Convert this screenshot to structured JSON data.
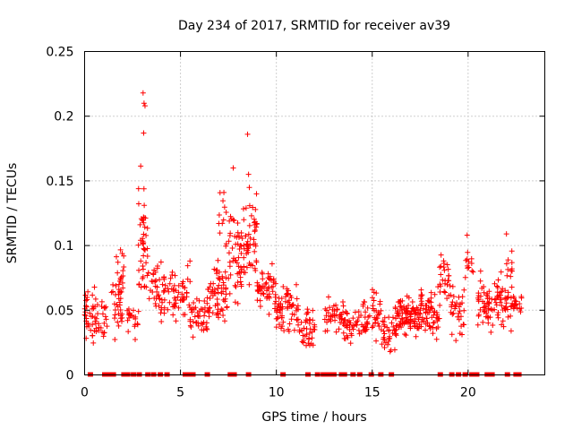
{
  "chart_data": {
    "type": "scatter",
    "title": "Day 234 of 2017, SRMTID for receiver av39",
    "xlabel": "GPS time / hours",
    "ylabel": "SRMTID / TECUs",
    "xlim": [
      0,
      24
    ],
    "ylim": [
      0,
      0.25
    ],
    "xticks": [
      0,
      5,
      10,
      15,
      20
    ],
    "yticks": [
      0,
      0.05,
      0.1,
      0.15,
      0.2,
      0.25
    ],
    "ytick_labels": [
      "0",
      "0.05",
      "0.1",
      "0.15",
      "0.2",
      "0.25"
    ],
    "grid": true,
    "marker": "+",
    "series_color": "#ff0000",
    "peaks": [
      {
        "x": 3.05,
        "y": 0.218
      },
      {
        "x": 3.1,
        "y": 0.21
      },
      {
        "x": 3.15,
        "y": 0.208
      },
      {
        "x": 3.08,
        "y": 0.187
      },
      {
        "x": 7.75,
        "y": 0.16
      },
      {
        "x": 8.5,
        "y": 0.186
      },
      {
        "x": 8.55,
        "y": 0.155
      },
      {
        "x": 22.0,
        "y": 0.109
      },
      {
        "x": 19.95,
        "y": 0.108
      }
    ],
    "segments": [
      {
        "x0": 0.0,
        "x1": 0.5,
        "ymean": 0.05,
        "spread": 0.025,
        "count": 30
      },
      {
        "x0": 0.5,
        "x1": 1.2,
        "ymean": 0.042,
        "spread": 0.02,
        "count": 30
      },
      {
        "x0": 1.4,
        "x1": 2.0,
        "ymean": 0.05,
        "spread": 0.025,
        "count": 28
      },
      {
        "x0": 1.6,
        "x1": 2.1,
        "ymean": 0.08,
        "spread": 0.018,
        "count": 18
      },
      {
        "x0": 2.2,
        "x1": 2.8,
        "ymean": 0.045,
        "spread": 0.012,
        "count": 20
      },
      {
        "x0": 2.8,
        "x1": 3.3,
        "ymean": 0.1,
        "spread": 0.045,
        "count": 45
      },
      {
        "x0": 3.3,
        "x1": 4.2,
        "ymean": 0.068,
        "spread": 0.02,
        "count": 45
      },
      {
        "x0": 4.2,
        "x1": 5.5,
        "ymean": 0.063,
        "spread": 0.022,
        "count": 55
      },
      {
        "x0": 5.5,
        "x1": 6.4,
        "ymean": 0.045,
        "spread": 0.015,
        "count": 40
      },
      {
        "x0": 6.4,
        "x1": 7.5,
        "ymean": 0.062,
        "spread": 0.025,
        "count": 65
      },
      {
        "x0": 7.0,
        "x1": 7.4,
        "ymean": 0.12,
        "spread": 0.025,
        "count": 12
      },
      {
        "x0": 7.5,
        "x1": 8.2,
        "ymean": 0.09,
        "spread": 0.035,
        "count": 50
      },
      {
        "x0": 8.2,
        "x1": 9.0,
        "ymean": 0.1,
        "spread": 0.04,
        "count": 55
      },
      {
        "x0": 9.0,
        "x1": 10.0,
        "ymean": 0.065,
        "spread": 0.02,
        "count": 55
      },
      {
        "x0": 10.0,
        "x1": 11.2,
        "ymean": 0.05,
        "spread": 0.02,
        "count": 65
      },
      {
        "x0": 11.2,
        "x1": 12.0,
        "ymean": 0.035,
        "spread": 0.015,
        "count": 40
      },
      {
        "x0": 12.5,
        "x1": 13.5,
        "ymean": 0.045,
        "spread": 0.015,
        "count": 40
      },
      {
        "x0": 13.5,
        "x1": 14.5,
        "ymean": 0.04,
        "spread": 0.015,
        "count": 40
      },
      {
        "x0": 14.5,
        "x1": 15.5,
        "ymean": 0.045,
        "spread": 0.018,
        "count": 50
      },
      {
        "x0": 15.5,
        "x1": 16.3,
        "ymean": 0.035,
        "spread": 0.018,
        "count": 40
      },
      {
        "x0": 16.3,
        "x1": 17.5,
        "ymean": 0.045,
        "spread": 0.015,
        "count": 90
      },
      {
        "x0": 17.5,
        "x1": 18.5,
        "ymean": 0.048,
        "spread": 0.018,
        "count": 65
      },
      {
        "x0": 18.5,
        "x1": 19.0,
        "ymean": 0.075,
        "spread": 0.018,
        "count": 25
      },
      {
        "x0": 19.0,
        "x1": 19.8,
        "ymean": 0.05,
        "spread": 0.02,
        "count": 35
      },
      {
        "x0": 19.8,
        "x1": 20.3,
        "ymean": 0.085,
        "spread": 0.02,
        "count": 12
      },
      {
        "x0": 20.5,
        "x1": 21.5,
        "ymean": 0.055,
        "spread": 0.02,
        "count": 55
      },
      {
        "x0": 21.5,
        "x1": 22.3,
        "ymean": 0.055,
        "spread": 0.022,
        "count": 45
      },
      {
        "x0": 22.0,
        "x1": 22.3,
        "ymean": 0.09,
        "spread": 0.012,
        "count": 8
      },
      {
        "x0": 22.3,
        "x1": 22.8,
        "ymean": 0.055,
        "spread": 0.01,
        "count": 20
      }
    ],
    "zero_markers_x": [
      0.3,
      1.05,
      1.25,
      1.5,
      2.05,
      2.25,
      2.55,
      2.85,
      3.3,
      3.6,
      3.95,
      4.3,
      5.25,
      5.5,
      5.65,
      6.4,
      7.6,
      7.8,
      8.55,
      10.35,
      11.65,
      12.15,
      12.45,
      12.6,
      12.75,
      13.0,
      13.4,
      13.55,
      14.0,
      14.35,
      14.95,
      15.45,
      16.0,
      18.55,
      19.15,
      19.5,
      19.85,
      20.2,
      20.45,
      21.0,
      21.1,
      21.25,
      22.05,
      22.5,
      22.65
    ]
  }
}
